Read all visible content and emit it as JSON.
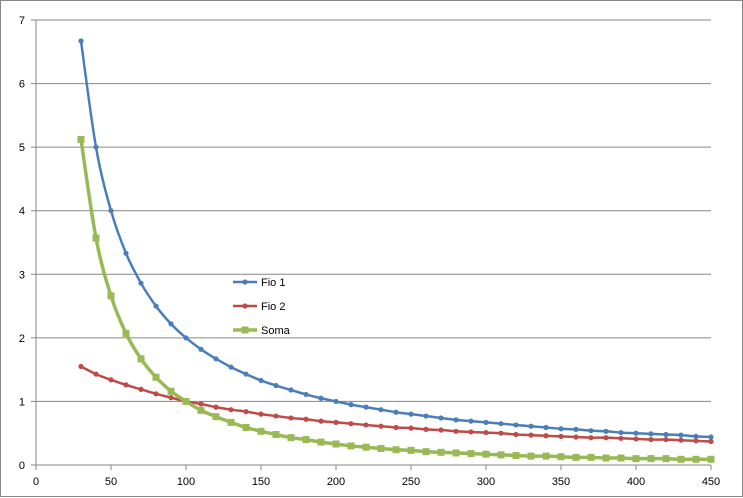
{
  "chart_data": {
    "type": "line",
    "title": "",
    "xlabel": "",
    "ylabel": "",
    "xlim": [
      0,
      450
    ],
    "ylim": [
      0,
      7
    ],
    "x_ticks": [
      0,
      50,
      100,
      150,
      200,
      250,
      300,
      350,
      400,
      450
    ],
    "y_ticks": [
      0,
      1,
      2,
      3,
      4,
      5,
      6,
      7
    ],
    "x_tick_labels": [
      "0",
      "50",
      "100",
      "150",
      "200",
      "250",
      "300",
      "350",
      "400",
      "450"
    ],
    "y_tick_labels": [
      "0",
      "1",
      "2",
      "3",
      "4",
      "5",
      "6",
      "7"
    ],
    "grid": "horizontal",
    "legend": "center-left",
    "x": [
      30,
      40,
      50,
      60,
      70,
      80,
      90,
      100,
      110,
      120,
      130,
      140,
      150,
      160,
      170,
      180,
      190,
      200,
      210,
      220,
      230,
      240,
      250,
      260,
      270,
      280,
      290,
      300,
      310,
      320,
      330,
      340,
      350,
      360,
      370,
      380,
      390,
      400,
      410,
      420,
      430,
      440,
      450
    ],
    "series": [
      {
        "name": "Fio 1",
        "color": "#4a7ebb",
        "marker": "circle",
        "values": [
          6.67,
          5.0,
          4.0,
          3.33,
          2.86,
          2.5,
          2.22,
          2.0,
          1.82,
          1.67,
          1.54,
          1.43,
          1.33,
          1.25,
          1.18,
          1.11,
          1.05,
          1.0,
          0.95,
          0.91,
          0.87,
          0.83,
          0.8,
          0.77,
          0.74,
          0.71,
          0.69,
          0.67,
          0.65,
          0.63,
          0.61,
          0.59,
          0.57,
          0.56,
          0.54,
          0.53,
          0.51,
          0.5,
          0.49,
          0.48,
          0.47,
          0.45,
          0.44
        ]
      },
      {
        "name": "Fio 2",
        "color": "#be4b48",
        "marker": "circle",
        "values": [
          1.55,
          1.43,
          1.34,
          1.26,
          1.19,
          1.12,
          1.06,
          1.0,
          0.96,
          0.91,
          0.87,
          0.84,
          0.8,
          0.77,
          0.74,
          0.72,
          0.69,
          0.67,
          0.65,
          0.63,
          0.61,
          0.59,
          0.58,
          0.56,
          0.55,
          0.53,
          0.52,
          0.51,
          0.5,
          0.48,
          0.47,
          0.46,
          0.45,
          0.44,
          0.43,
          0.43,
          0.42,
          0.41,
          0.4,
          0.4,
          0.39,
          0.38,
          0.37
        ]
      },
      {
        "name": "Soma",
        "color": "#98b954",
        "marker": "square",
        "values": [
          5.12,
          3.57,
          2.66,
          2.07,
          1.67,
          1.38,
          1.16,
          1.0,
          0.86,
          0.76,
          0.67,
          0.59,
          0.53,
          0.48,
          0.43,
          0.4,
          0.36,
          0.33,
          0.3,
          0.28,
          0.26,
          0.24,
          0.23,
          0.21,
          0.2,
          0.19,
          0.18,
          0.17,
          0.16,
          0.15,
          0.14,
          0.14,
          0.13,
          0.12,
          0.12,
          0.11,
          0.11,
          0.1,
          0.1,
          0.1,
          0.09,
          0.09,
          0.09
        ]
      }
    ]
  }
}
